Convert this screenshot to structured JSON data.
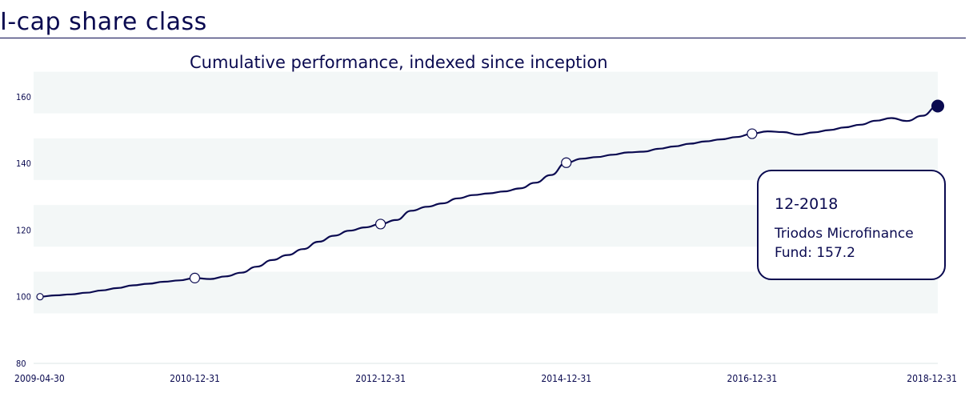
{
  "header": {
    "title": "I-cap share class"
  },
  "chart_data": {
    "type": "line",
    "title": "Cumulative performance, indexed since inception",
    "xlabel": "",
    "ylabel": "",
    "ylim": [
      80,
      165
    ],
    "y_ticks": [
      "80",
      "100",
      "120",
      "140",
      "160"
    ],
    "x_ticks": [
      "2009-04-30",
      "2010-12-31",
      "2012-12-31",
      "2014-12-31",
      "2016-12-31",
      "2018-12-31"
    ],
    "grid": "banded",
    "series": [
      {
        "name": "Triodos Microfinance Fund",
        "color": "#0a0a50",
        "x": [
          "2009-04",
          "2009-06",
          "2009-08",
          "2009-10",
          "2009-12",
          "2010-02",
          "2010-04",
          "2010-06",
          "2010-08",
          "2010-10",
          "2010-12",
          "2011-02",
          "2011-04",
          "2011-06",
          "2011-08",
          "2011-10",
          "2011-12",
          "2012-02",
          "2012-04",
          "2012-06",
          "2012-08",
          "2012-10",
          "2012-12",
          "2013-02",
          "2013-04",
          "2013-06",
          "2013-08",
          "2013-10",
          "2013-12",
          "2014-02",
          "2014-04",
          "2014-06",
          "2014-08",
          "2014-10",
          "2014-12",
          "2015-02",
          "2015-04",
          "2015-06",
          "2015-08",
          "2015-10",
          "2015-12",
          "2016-02",
          "2016-04",
          "2016-06",
          "2016-08",
          "2016-10",
          "2016-12",
          "2017-02",
          "2017-04",
          "2017-06",
          "2017-08",
          "2017-10",
          "2017-12",
          "2018-02",
          "2018-04",
          "2018-06",
          "2018-08",
          "2018-10",
          "2018-12"
        ],
        "values": [
          100.0,
          100.4,
          100.7,
          101.2,
          101.9,
          102.6,
          103.4,
          103.9,
          104.5,
          104.9,
          105.6,
          105.3,
          106.1,
          107.2,
          109.0,
          111.0,
          112.5,
          114.3,
          116.5,
          118.3,
          119.8,
          120.8,
          121.8,
          123.0,
          125.8,
          127.0,
          128.0,
          129.5,
          130.5,
          131.0,
          131.6,
          132.5,
          134.2,
          136.5,
          140.2,
          141.4,
          141.9,
          142.6,
          143.3,
          143.5,
          144.4,
          145.1,
          145.9,
          146.6,
          147.2,
          147.9,
          148.9,
          149.6,
          149.4,
          148.6,
          149.3,
          150.0,
          150.8,
          151.6,
          152.8,
          153.6,
          152.7,
          154.3,
          157.2
        ]
      }
    ],
    "markers": [
      {
        "x": "2009-04",
        "value": 100.0
      },
      {
        "x": "2010-12",
        "value": 105.6
      },
      {
        "x": "2012-12",
        "value": 121.8
      },
      {
        "x": "2014-12",
        "value": 140.2
      },
      {
        "x": "2016-12",
        "value": 148.9
      }
    ],
    "highlight": {
      "x": "2018-12",
      "value": 157.2
    },
    "tooltip": {
      "date": "12-2018",
      "label": "Triodos Microfinance Fund: 157.2"
    }
  }
}
